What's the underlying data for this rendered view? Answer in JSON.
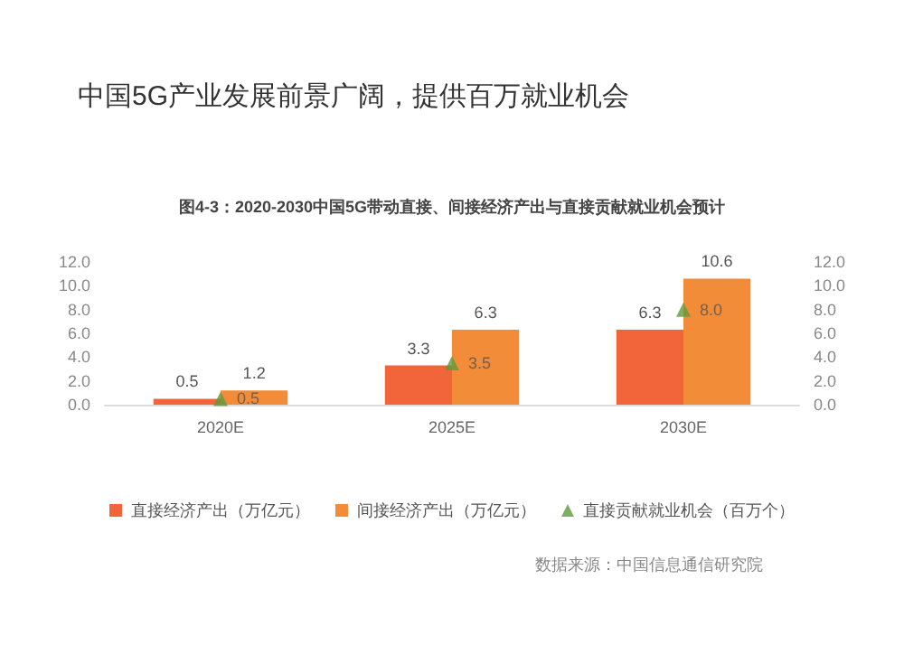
{
  "chart_data": {
    "type": "bar",
    "title": "中国5G产业发展前景广阔，提供百万就业机会",
    "subtitle": "图4-3：2020-2030中国5G带动直接、间接经济产出与直接贡献就业机会预计",
    "categories": [
      "2020E",
      "2025E",
      "2030E"
    ],
    "series": [
      {
        "name": "直接经济产出（万亿元）",
        "color": "#f2643a",
        "values": [
          0.5,
          3.3,
          6.3
        ],
        "value_labels": [
          "0.5",
          "3.3",
          "6.3"
        ]
      },
      {
        "name": "间接经济产出（万亿元）",
        "color": "#f28c38",
        "values": [
          1.2,
          6.3,
          10.6
        ],
        "value_labels": [
          "1.2",
          "6.3",
          "10.6"
        ]
      },
      {
        "name": "直接贡献就业机会（百万个）",
        "type": "scatter",
        "axis": "y2",
        "marker": "triangle",
        "color": "#5f9a3c",
        "values": [
          0.5,
          3.5,
          8.0
        ],
        "value_labels": [
          "0.5",
          "3.5",
          "8.0"
        ]
      }
    ],
    "ylim": [
      0,
      12
    ],
    "yticks": [
      {
        "value": 0,
        "label": "0.0"
      },
      {
        "value": 2,
        "label": "2.0"
      },
      {
        "value": 4,
        "label": "4.0"
      },
      {
        "value": 6,
        "label": "6.0"
      },
      {
        "value": 8,
        "label": "8.0"
      },
      {
        "value": 10,
        "label": "10.0"
      },
      {
        "value": 12,
        "label": "12.0"
      }
    ],
    "y2lim": [
      0,
      12
    ],
    "y2ticks": [
      {
        "value": 0,
        "label": "0.0"
      },
      {
        "value": 2,
        "label": "2.0"
      },
      {
        "value": 4,
        "label": "4.0"
      },
      {
        "value": 6,
        "label": "6.0"
      },
      {
        "value": 8,
        "label": "8.0"
      },
      {
        "value": 10,
        "label": "10.0"
      },
      {
        "value": 12,
        "label": "12.0"
      }
    ],
    "legend": "bottom",
    "annotations": [
      "数据来源：中国信息通信研究院"
    ]
  }
}
